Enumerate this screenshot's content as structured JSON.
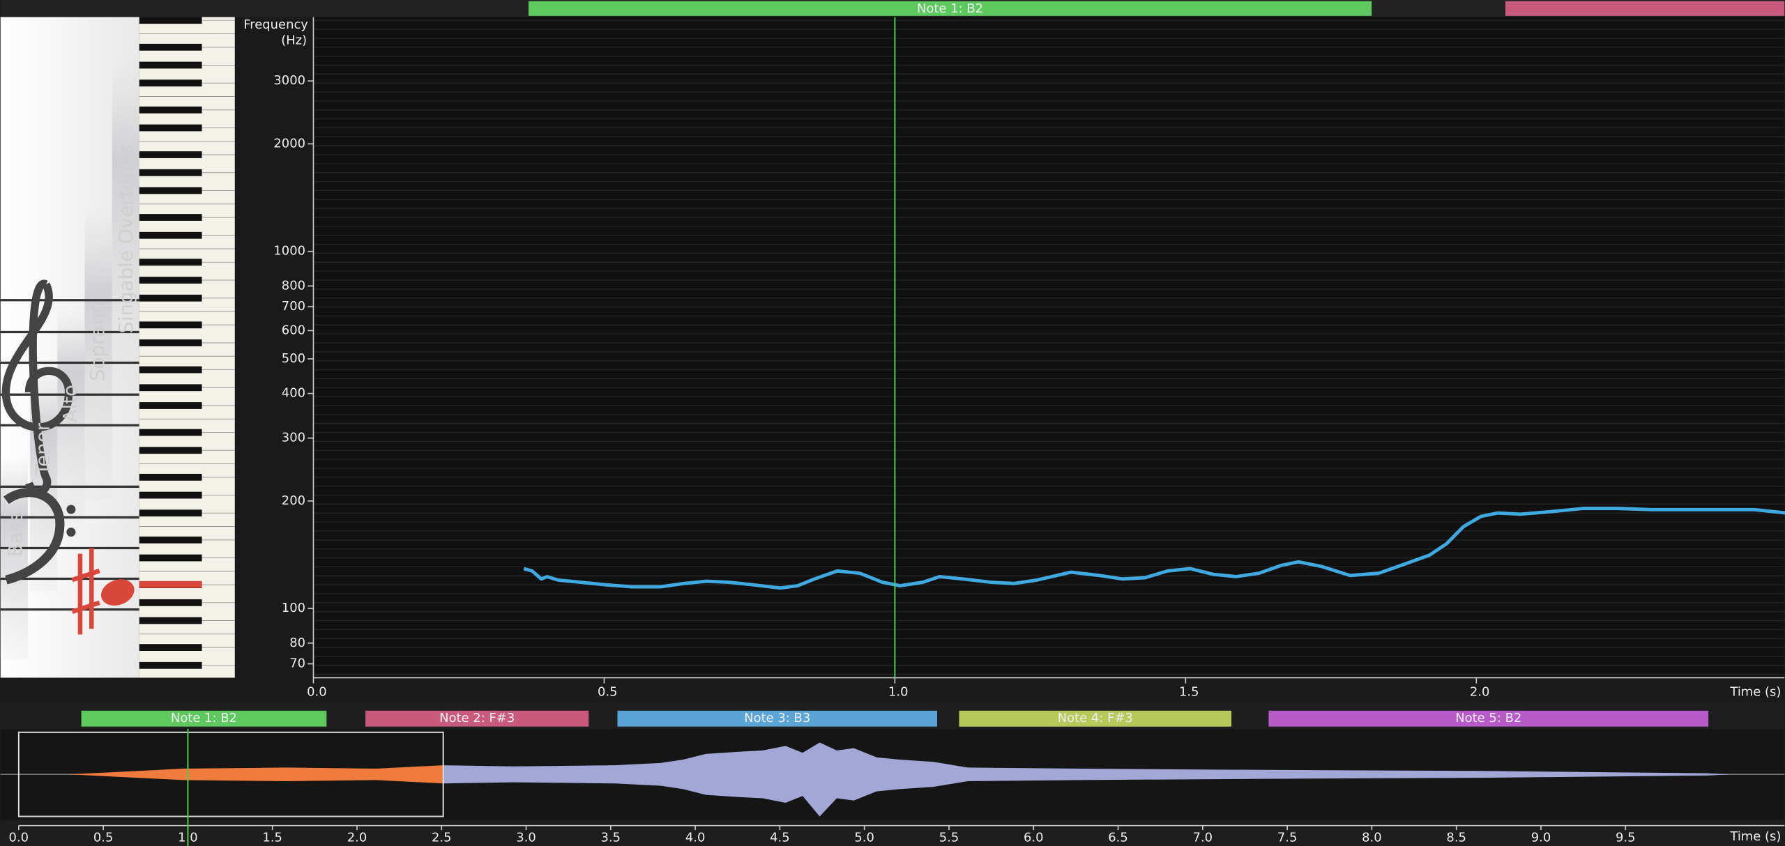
{
  "notes": [
    {
      "label": "Note 1: B2",
      "start": 0.37,
      "end": 1.82,
      "color": "#5ec95e"
    },
    {
      "label": "Note 2: F#3",
      "start": 2.05,
      "end": 3.37,
      "color": "#c85a7e"
    },
    {
      "label": "Note 3: B3",
      "start": 3.54,
      "end": 5.43,
      "color": "#5aa5d6"
    },
    {
      "label": "Note 4: F#3",
      "start": 5.56,
      "end": 7.17,
      "color": "#b7c95a"
    },
    {
      "label": "Note 5: B2",
      "start": 7.39,
      "end": 9.99,
      "color": "#b65ac8"
    }
  ],
  "voice_ranges": [
    "Bass",
    "Tenor",
    "Alto",
    "Soprano",
    "Singable Overtones"
  ],
  "chart_data": [
    {
      "type": "line",
      "ylabel": [
        "Frequency",
        "(Hz)"
      ],
      "xlabel": "Time (s)",
      "log_y": true,
      "xlim": [
        0,
        2.53
      ],
      "ylim": [
        64,
        4530
      ],
      "xticks": [
        {
          "value": 0,
          "label": "0.0"
        },
        0.5,
        {
          "value": 1,
          "label": "1.0"
        },
        1.5,
        {
          "value": 2,
          "label": "2.0"
        }
      ],
      "yticks": [
        70,
        80,
        100,
        200,
        300,
        400,
        500,
        600,
        700,
        800,
        1000,
        2000,
        3000
      ],
      "cursor": 1.0,
      "series": [
        {
          "color": "#3fa9e0",
          "x": [
            0.362,
            0.376,
            0.392,
            0.402,
            0.421,
            0.46,
            0.5,
            0.548,
            0.597,
            0.637,
            0.676,
            0.715,
            0.754,
            0.803,
            0.833,
            0.862,
            0.901,
            0.94,
            0.979,
            1.009,
            1.048,
            1.077,
            1.117,
            1.166,
            1.205,
            1.244,
            1.303,
            1.352,
            1.391,
            1.43,
            1.469,
            1.508,
            1.548,
            1.587,
            1.626,
            1.665,
            1.694,
            1.734,
            1.783,
            1.832,
            1.871,
            1.92,
            1.949,
            1.978,
            2.008,
            2.037,
            2.076,
            2.125,
            2.184,
            2.243,
            2.302,
            2.36,
            2.419,
            2.478,
            2.533
          ],
          "values": [
            129.3,
            127.4,
            121,
            122.8,
            120.1,
            118.4,
            116.6,
            115,
            115,
            117.5,
            119.2,
            118.4,
            116.6,
            114.1,
            115.8,
            121,
            127.4,
            125.5,
            118.4,
            115.8,
            118.4,
            122.8,
            121,
            118.4,
            117.5,
            120.1,
            126.4,
            123.7,
            121,
            121.9,
            127.4,
            129.3,
            124.6,
            122.8,
            125.5,
            132.1,
            135.1,
            131.1,
            123.7,
            125.5,
            132.1,
            141.2,
            151.9,
            169.6,
            181.1,
            185.1,
            183.7,
            186.5,
            190.6,
            190.6,
            189.2,
            189.2,
            189.2,
            189.2,
            185.1
          ]
        }
      ]
    },
    {
      "type": "waveform",
      "xlabel": "Time (s)",
      "xlim": [
        0,
        10.44
      ],
      "xticks": [
        {
          "value": 0,
          "label": "0.0"
        },
        0.5,
        {
          "value": 1,
          "label": "1.0"
        },
        1.5,
        {
          "value": 2,
          "label": "2.0"
        },
        2.5,
        {
          "value": 3,
          "label": "3.0"
        },
        3.5,
        {
          "value": 4,
          "label": "4.0"
        },
        4.5,
        {
          "value": 5,
          "label": "5.0"
        },
        5.5,
        {
          "value": 6,
          "label": "6.0"
        },
        6.5,
        {
          "value": 7,
          "label": "7.0"
        },
        7.5,
        {
          "value": 8,
          "label": "8.0"
        },
        8.5,
        {
          "value": 9,
          "label": "9.0"
        },
        9.5
      ],
      "cursor": 1.0,
      "selection": [
        0,
        2.51
      ]
    }
  ]
}
